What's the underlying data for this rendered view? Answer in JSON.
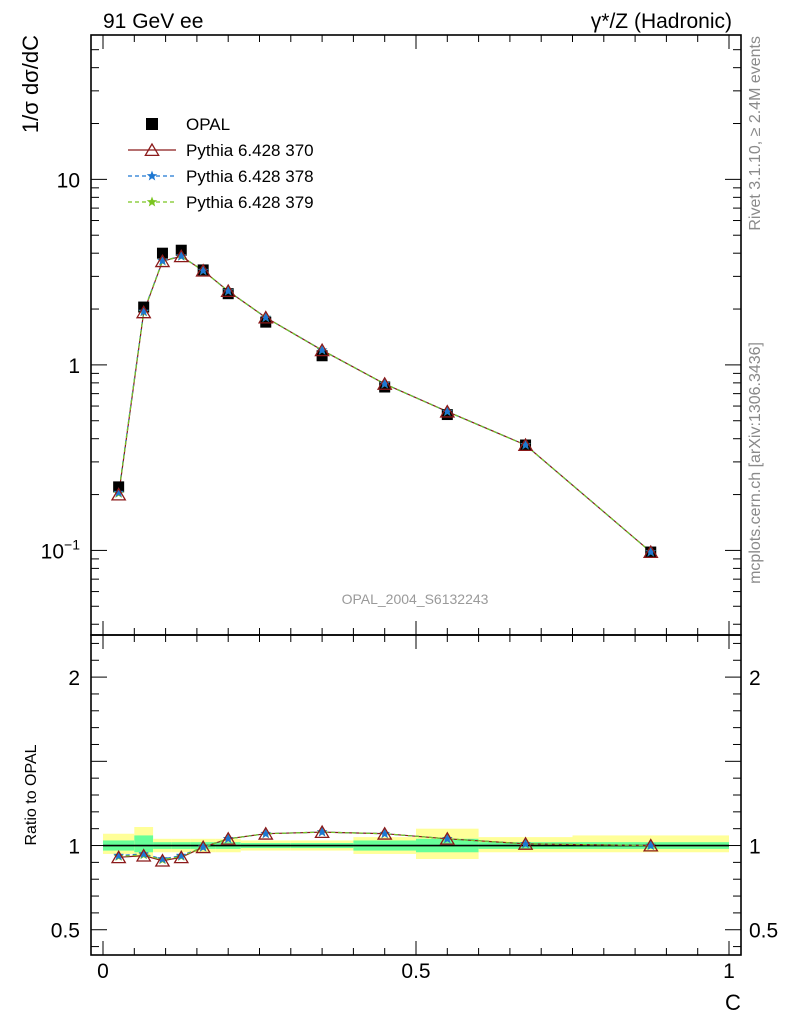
{
  "header": {
    "left": "91 GeV ee",
    "right": "γ*/Z (Hadronic)"
  },
  "side_text": {
    "rivet": "Rivet 3.1.10, ≥ 2.4M events",
    "mcplots": "mcplots.cern.ch [arXiv:1306.3436]"
  },
  "watermark": "OPAL_2004_S6132243",
  "chart_data": {
    "type": "line",
    "log_y_main": true,
    "xlabel": "C",
    "ylabel_main": "1/σ dσ/dC",
    "ylabel_ratio": "Ratio to OPAL",
    "xlim": [
      0,
      1
    ],
    "ylim_main": [
      0.035,
      60
    ],
    "ylim_ratio": [
      0.35,
      2.25
    ],
    "x_ticks": [
      "0",
      "0.5",
      "1"
    ],
    "y_ticks_main": [
      "10^-1",
      "1",
      "10"
    ],
    "y_ticks_ratio": [
      "0.5",
      "1",
      "2"
    ],
    "legend": [
      "OPAL",
      "Pythia 6.428 370",
      "Pythia 6.428 378",
      "Pythia 6.428 379"
    ],
    "legend_position": "top-left",
    "colors": {
      "data": "#000000",
      "p370": "#8b1a1a",
      "p378": "#1e78d2",
      "p379": "#7ac520",
      "band_inner": "#66ff99",
      "band_outer": "#ffff99"
    },
    "x": [
      0.025,
      0.065,
      0.095,
      0.125,
      0.16,
      0.2,
      0.26,
      0.35,
      0.45,
      0.55,
      0.675,
      0.875
    ],
    "data_values": [
      0.22,
      2.05,
      4.0,
      4.15,
      3.25,
      2.42,
      1.7,
      1.12,
      0.76,
      0.54,
      0.37,
      0.098
    ],
    "series": [
      {
        "name": "Pythia 6.428 370",
        "values": [
          0.2,
          1.92,
          3.62,
          3.85,
          3.22,
          2.5,
          1.8,
          1.2,
          0.79,
          0.56,
          0.37,
          0.098
        ],
        "ratio": [
          0.93,
          0.94,
          0.91,
          0.93,
          0.99,
          1.04,
          1.07,
          1.08,
          1.07,
          1.04,
          1.01,
          1.0
        ]
      },
      {
        "name": "Pythia 6.428 378",
        "values": [
          0.205,
          1.94,
          3.64,
          3.86,
          3.22,
          2.5,
          1.8,
          1.2,
          0.79,
          0.56,
          0.37,
          0.098
        ],
        "ratio": [
          0.94,
          0.95,
          0.92,
          0.94,
          0.99,
          1.04,
          1.07,
          1.08,
          1.07,
          1.04,
          1.01,
          1.0
        ]
      },
      {
        "name": "Pythia 6.428 379",
        "values": [
          0.203,
          1.93,
          3.63,
          3.85,
          3.22,
          2.5,
          1.8,
          1.2,
          0.79,
          0.56,
          0.37,
          0.098
        ],
        "ratio": [
          0.935,
          0.945,
          0.915,
          0.935,
          0.99,
          1.04,
          1.07,
          1.08,
          1.07,
          1.04,
          1.01,
          1.0
        ]
      }
    ],
    "bins": [
      {
        "x0": 0.0,
        "x1": 0.05,
        "inner": [
          0.97,
          1.03
        ],
        "outer": [
          0.95,
          1.07
        ]
      },
      {
        "x0": 0.05,
        "x1": 0.08,
        "inner": [
          0.96,
          1.06
        ],
        "outer": [
          0.93,
          1.11
        ]
      },
      {
        "x0": 0.08,
        "x1": 0.11,
        "inner": [
          0.98,
          1.02
        ],
        "outer": [
          0.96,
          1.04
        ]
      },
      {
        "x0": 0.11,
        "x1": 0.14,
        "inner": [
          0.98,
          1.02
        ],
        "outer": [
          0.96,
          1.04
        ]
      },
      {
        "x0": 0.14,
        "x1": 0.18,
        "inner": [
          0.98,
          1.02
        ],
        "outer": [
          0.96,
          1.04
        ]
      },
      {
        "x0": 0.18,
        "x1": 0.22,
        "inner": [
          0.98,
          1.02
        ],
        "outer": [
          0.96,
          1.04
        ]
      },
      {
        "x0": 0.22,
        "x1": 0.3,
        "inner": [
          0.985,
          1.015
        ],
        "outer": [
          0.97,
          1.03
        ]
      },
      {
        "x0": 0.3,
        "x1": 0.4,
        "inner": [
          0.985,
          1.015
        ],
        "outer": [
          0.97,
          1.03
        ]
      },
      {
        "x0": 0.4,
        "x1": 0.5,
        "inner": [
          0.97,
          1.03
        ],
        "outer": [
          0.95,
          1.05
        ]
      },
      {
        "x0": 0.5,
        "x1": 0.6,
        "inner": [
          0.96,
          1.04
        ],
        "outer": [
          0.92,
          1.1
        ]
      },
      {
        "x0": 0.6,
        "x1": 0.75,
        "inner": [
          0.98,
          1.02
        ],
        "outer": [
          0.96,
          1.05
        ]
      },
      {
        "x0": 0.75,
        "x1": 1.0,
        "inner": [
          0.98,
          1.02
        ],
        "outer": [
          0.96,
          1.06
        ]
      }
    ]
  }
}
